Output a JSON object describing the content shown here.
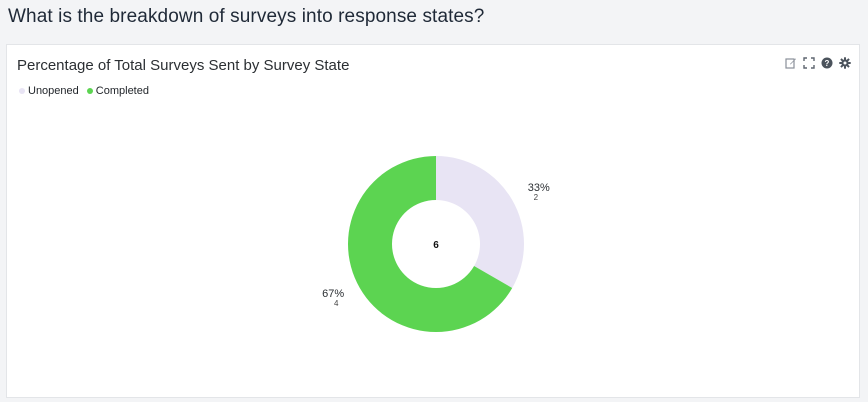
{
  "header": {
    "question": "What is the breakdown of surveys into response states?"
  },
  "card": {
    "title": "Percentage of Total Surveys Sent by Survey State"
  },
  "toolbar": {
    "icons": [
      "edit-icon",
      "expand-icon",
      "help-icon",
      "gear-icon"
    ]
  },
  "colors": {
    "unopened": "#e8e4f4",
    "completed": "#5cd451"
  },
  "chart_data": {
    "type": "pie",
    "donut": true,
    "legend_position": "top-left",
    "center_label": "6",
    "categories": [
      "Unopened",
      "Completed"
    ],
    "values": [
      2,
      4
    ],
    "percent_labels": [
      "33%",
      "67%"
    ],
    "count_labels": [
      "2",
      "4"
    ]
  }
}
